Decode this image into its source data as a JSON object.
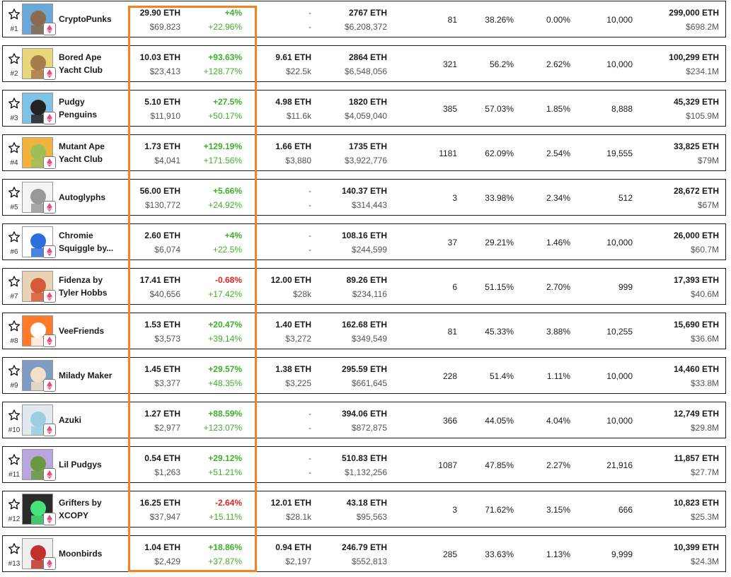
{
  "colors": {
    "highlight": "#f5811f",
    "positive": "#3fae29",
    "negative": "#e02424",
    "badge": "#e0508a"
  },
  "icons": {
    "watchlist": "star-outline-icon",
    "chain": "ethereum-icon"
  },
  "rows": [
    {
      "rank": "#1",
      "name1": "CryptoPunks",
      "name2": "",
      "floor_eth": "29.90",
      "floor_usd": "$69,823",
      "change_eth": "+4%",
      "change_usd": "+22.96%",
      "change_eth_dir": "pos",
      "bid_eth": "-",
      "bid_usd": "-",
      "vol_eth": "2767",
      "vol_usd": "$6,208,372",
      "sales": "81",
      "pct1": "38.26%",
      "pct2": "0.00%",
      "supply": "10,000",
      "mcap_eth": "299,000",
      "mcap_usd": "$698.2M"
    },
    {
      "rank": "#2",
      "name1": "Bored Ape",
      "name2": "Yacht Club",
      "floor_eth": "10.03",
      "floor_usd": "$23,413",
      "change_eth": "+93.63%",
      "change_usd": "+128.77%",
      "change_eth_dir": "pos",
      "bid_eth": "9.61",
      "bid_usd": "$22.5k",
      "vol_eth": "2864",
      "vol_usd": "$6,548,056",
      "sales": "321",
      "pct1": "56.2%",
      "pct2": "2.62%",
      "supply": "10,000",
      "mcap_eth": "100,299",
      "mcap_usd": "$234.1M"
    },
    {
      "rank": "#3",
      "name1": "Pudgy",
      "name2": "Penguins",
      "floor_eth": "5.10",
      "floor_usd": "$11,910",
      "change_eth": "+27.5%",
      "change_usd": "+50.17%",
      "change_eth_dir": "pos",
      "bid_eth": "4.98",
      "bid_usd": "$11.6k",
      "vol_eth": "1820",
      "vol_usd": "$4,059,040",
      "sales": "385",
      "pct1": "57.03%",
      "pct2": "1.85%",
      "supply": "8,888",
      "mcap_eth": "45,329",
      "mcap_usd": "$105.9M"
    },
    {
      "rank": "#4",
      "name1": "Mutant Ape",
      "name2": "Yacht Club",
      "floor_eth": "1.73",
      "floor_usd": "$4,041",
      "change_eth": "+129.19%",
      "change_usd": "+171.56%",
      "change_eth_dir": "pos",
      "bid_eth": "1.66",
      "bid_usd": "$3,880",
      "vol_eth": "1735",
      "vol_usd": "$3,922,776",
      "sales": "1181",
      "pct1": "62.09%",
      "pct2": "2.54%",
      "supply": "19,555",
      "mcap_eth": "33,825",
      "mcap_usd": "$79M"
    },
    {
      "rank": "#5",
      "name1": "Autoglyphs",
      "name2": "",
      "floor_eth": "56.00",
      "floor_usd": "$130,772",
      "change_eth": "+5.66%",
      "change_usd": "+24.92%",
      "change_eth_dir": "pos",
      "bid_eth": "-",
      "bid_usd": "-",
      "vol_eth": "140.37",
      "vol_usd": "$314,443",
      "sales": "3",
      "pct1": "33.98%",
      "pct2": "2.34%",
      "supply": "512",
      "mcap_eth": "28,672",
      "mcap_usd": "$67M"
    },
    {
      "rank": "#6",
      "name1": "Chromie",
      "name2": "Squiggle by...",
      "floor_eth": "2.60",
      "floor_usd": "$6,074",
      "change_eth": "+4%",
      "change_usd": "+22.5%",
      "change_eth_dir": "pos",
      "bid_eth": "-",
      "bid_usd": "-",
      "vol_eth": "108.16",
      "vol_usd": "$244,599",
      "sales": "37",
      "pct1": "29.21%",
      "pct2": "1.46%",
      "supply": "10,000",
      "mcap_eth": "26,000",
      "mcap_usd": "$60.7M"
    },
    {
      "rank": "#7",
      "name1": "Fidenza by",
      "name2": "Tyler Hobbs",
      "floor_eth": "17.41",
      "floor_usd": "$40,656",
      "change_eth": "-0.68%",
      "change_usd": "+17.42%",
      "change_eth_dir": "neg",
      "bid_eth": "12.00",
      "bid_usd": "$28k",
      "vol_eth": "89.26",
      "vol_usd": "$234,116",
      "sales": "6",
      "pct1": "51.15%",
      "pct2": "2.70%",
      "supply": "999",
      "mcap_eth": "17,393",
      "mcap_usd": "$40.6M"
    },
    {
      "rank": "#8",
      "name1": "VeeFriends",
      "name2": "",
      "floor_eth": "1.53",
      "floor_usd": "$3,573",
      "change_eth": "+20.47%",
      "change_usd": "+39.14%",
      "change_eth_dir": "pos",
      "bid_eth": "1.40",
      "bid_usd": "$3,272",
      "vol_eth": "162.68",
      "vol_usd": "$349,549",
      "sales": "81",
      "pct1": "45.33%",
      "pct2": "3.88%",
      "supply": "10,255",
      "mcap_eth": "15,690",
      "mcap_usd": "$36.6M"
    },
    {
      "rank": "#9",
      "name1": "Milady Maker",
      "name2": "",
      "floor_eth": "1.45",
      "floor_usd": "$3,377",
      "change_eth": "+29.57%",
      "change_usd": "+48.35%",
      "change_eth_dir": "pos",
      "bid_eth": "1.38",
      "bid_usd": "$3,225",
      "vol_eth": "295.59",
      "vol_usd": "$661,645",
      "sales": "228",
      "pct1": "51.4%",
      "pct2": "1.11%",
      "supply": "10,000",
      "mcap_eth": "14,460",
      "mcap_usd": "$33.8M"
    },
    {
      "rank": "#10",
      "name1": "Azuki",
      "name2": "",
      "floor_eth": "1.27",
      "floor_usd": "$2,977",
      "change_eth": "+88.59%",
      "change_usd": "+123.07%",
      "change_eth_dir": "pos",
      "bid_eth": "-",
      "bid_usd": "-",
      "vol_eth": "394.06",
      "vol_usd": "$872,875",
      "sales": "366",
      "pct1": "44.05%",
      "pct2": "4.04%",
      "supply": "10,000",
      "mcap_eth": "12,749",
      "mcap_usd": "$29.8M"
    },
    {
      "rank": "#11",
      "name1": "Lil Pudgys",
      "name2": "",
      "floor_eth": "0.54",
      "floor_usd": "$1,263",
      "change_eth": "+29.12%",
      "change_usd": "+51.21%",
      "change_eth_dir": "pos",
      "bid_eth": "-",
      "bid_usd": "-",
      "vol_eth": "510.83",
      "vol_usd": "$1,132,256",
      "sales": "1087",
      "pct1": "47.85%",
      "pct2": "2.27%",
      "supply": "21,916",
      "mcap_eth": "11,857",
      "mcap_usd": "$27.7M"
    },
    {
      "rank": "#12",
      "name1": "Grifters by",
      "name2": "XCOPY",
      "floor_eth": "16.25",
      "floor_usd": "$37,947",
      "change_eth": "-2.64%",
      "change_usd": "+15.11%",
      "change_eth_dir": "neg",
      "bid_eth": "12.01",
      "bid_usd": "$28.1k",
      "vol_eth": "43.18",
      "vol_usd": "$95,563",
      "sales": "3",
      "pct1": "71.62%",
      "pct2": "3.15%",
      "supply": "666",
      "mcap_eth": "10,823",
      "mcap_usd": "$25.3M"
    },
    {
      "rank": "#13",
      "name1": "Moonbirds",
      "name2": "",
      "floor_eth": "1.04",
      "floor_usd": "$2,429",
      "change_eth": "+18.86%",
      "change_usd": "+37.87%",
      "change_eth_dir": "pos",
      "bid_eth": "0.94",
      "bid_usd": "$2,197",
      "vol_eth": "246.79",
      "vol_usd": "$552,813",
      "sales": "285",
      "pct1": "33.63%",
      "pct2": "1.13%",
      "supply": "9,999",
      "mcap_eth": "10,399",
      "mcap_usd": "$24.3M"
    }
  ],
  "unit": "ETH"
}
